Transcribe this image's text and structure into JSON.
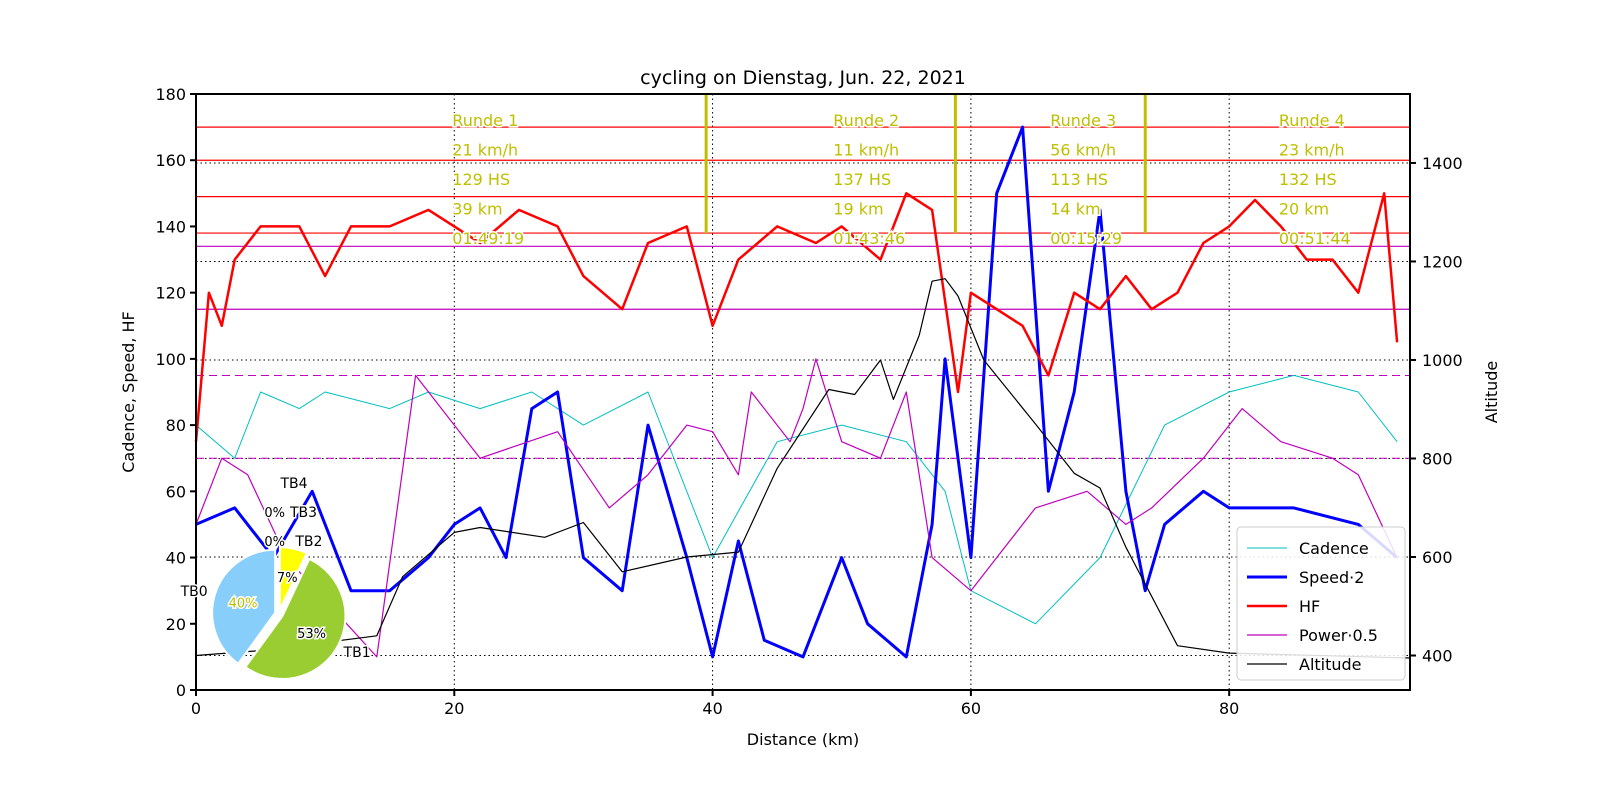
{
  "chart_data": {
    "type": "line",
    "title": "cycling on Dienstag, Jun. 22, 2021",
    "xlabel": "Distance (km)",
    "ylabel": "Cadence, Speed, HF",
    "ylabel_right": "Altitude",
    "xlim": [
      0,
      94
    ],
    "ylim": [
      0,
      180
    ],
    "ylim_right": [
      330,
      1540
    ],
    "xticks": [
      0,
      20,
      40,
      60,
      80
    ],
    "yticks": [
      0,
      20,
      40,
      60,
      80,
      100,
      120,
      140,
      160,
      180
    ],
    "yticks_right": [
      400,
      600,
      800,
      1000,
      1200,
      1400
    ],
    "hlines_red": [
      170,
      160,
      149,
      138
    ],
    "hlines_magenta": [
      134,
      115
    ],
    "hlines_magenta_dashed": [
      95,
      70
    ],
    "lap_lines_km": [
      39.5,
      58.8,
      73.5
    ],
    "laps": [
      {
        "km": 20,
        "lines": [
          "Runde 1",
          "21 km/h",
          "129 HS",
          "39 km",
          "01:49:19"
        ]
      },
      {
        "km": 49.5,
        "lines": [
          "Runde 2",
          "11 km/h",
          "137 HS",
          "19 km",
          "01:43:46"
        ]
      },
      {
        "km": 66.3,
        "lines": [
          "Runde 3",
          "56 km/h",
          "113 HS",
          "14 km",
          "00:15:29"
        ]
      },
      {
        "km": 84,
        "lines": [
          "Runde 4",
          "23 km/h",
          "132 HS",
          "20 km",
          "00:51:44"
        ]
      }
    ],
    "series": [
      {
        "name": "Cadence",
        "color": "#00bfbf",
        "width": 1,
        "axis": "left",
        "x": [
          0,
          3,
          5,
          8,
          10,
          15,
          18,
          22,
          26,
          30,
          35,
          40,
          45,
          50,
          55,
          58,
          60,
          65,
          70,
          75,
          80,
          85,
          90,
          93
        ],
        "y": [
          80,
          70,
          90,
          85,
          90,
          85,
          90,
          85,
          90,
          80,
          90,
          40,
          75,
          80,
          75,
          60,
          30,
          20,
          40,
          80,
          90,
          95,
          90,
          75
        ]
      },
      {
        "name": "Speed·2",
        "color": "#0000ff",
        "width": 3,
        "axis": "left",
        "x": [
          0,
          3,
          6,
          9,
          12,
          15,
          18,
          20,
          22,
          24,
          26,
          28,
          30,
          33,
          35,
          38,
          40,
          42,
          44,
          47,
          50,
          52,
          55,
          57,
          58,
          60,
          62,
          64,
          66,
          68,
          70,
          72,
          73.5,
          75,
          78,
          80,
          85,
          90,
          93
        ],
        "y": [
          50,
          55,
          40,
          60,
          30,
          30,
          40,
          50,
          55,
          40,
          85,
          90,
          40,
          30,
          80,
          40,
          10,
          45,
          15,
          10,
          40,
          20,
          10,
          50,
          100,
          40,
          150,
          170,
          60,
          90,
          145,
          60,
          30,
          50,
          60,
          55,
          55,
          50,
          40
        ]
      },
      {
        "name": "HF",
        "color": "#ff0000",
        "width": 2.5,
        "axis": "left",
        "x": [
          0,
          1,
          2,
          3,
          5,
          8,
          10,
          12,
          15,
          18,
          20,
          22,
          25,
          28,
          30,
          33,
          35,
          38,
          40,
          42,
          45,
          48,
          50,
          53,
          55,
          57,
          59,
          60,
          62,
          64,
          66,
          68,
          70,
          72,
          74,
          76,
          78,
          80,
          82,
          84,
          86,
          88,
          90,
          92,
          93
        ],
        "y": [
          75,
          120,
          110,
          130,
          140,
          140,
          125,
          140,
          140,
          145,
          140,
          135,
          145,
          140,
          125,
          115,
          135,
          140,
          110,
          130,
          140,
          135,
          140,
          130,
          150,
          145,
          90,
          120,
          115,
          110,
          95,
          120,
          115,
          125,
          115,
          120,
          135,
          140,
          148,
          140,
          130,
          130,
          120,
          150,
          105
        ]
      },
      {
        "name": "Power·0.5",
        "color": "#bf00bf",
        "width": 1.2,
        "axis": "left",
        "x": [
          0,
          2,
          4,
          7,
          14,
          17,
          22,
          28,
          32,
          35,
          38,
          40,
          42,
          43,
          46,
          47,
          48,
          50,
          53,
          55,
          57,
          60,
          62,
          65,
          69,
          72,
          74,
          78,
          81,
          84,
          88,
          90,
          93
        ],
        "y": [
          50,
          70,
          65,
          40,
          10,
          95,
          70,
          78,
          55,
          65,
          80,
          78,
          65,
          90,
          75,
          85,
          100,
          75,
          70,
          90,
          40,
          30,
          40,
          55,
          60,
          50,
          55,
          70,
          85,
          75,
          70,
          65,
          40
        ]
      },
      {
        "name": "Altitude",
        "color": "#000000",
        "width": 1.2,
        "axis": "right",
        "x": [
          0,
          5,
          14,
          16,
          20,
          22,
          27,
          30,
          33,
          38,
          42,
          45,
          49,
          51,
          53,
          54,
          56,
          57,
          58,
          59,
          61,
          65,
          68,
          70,
          72,
          76,
          80,
          94
        ],
        "y": [
          400,
          410,
          440,
          560,
          650,
          660,
          640,
          670,
          570,
          600,
          610,
          780,
          940,
          930,
          1000,
          920,
          1050,
          1160,
          1165,
          1130,
          1000,
          870,
          770,
          740,
          620,
          420,
          405,
          395
        ]
      }
    ],
    "legend": {
      "placement": "lower-right",
      "entries": [
        "Cadence",
        "Speed·2",
        "HF",
        "Power·0.5",
        "Altitude"
      ]
    },
    "pie": {
      "labels": [
        "TB0",
        "TB1",
        "TB2",
        "TB3",
        "TB4"
      ],
      "values": [
        40,
        53,
        7,
        0,
        0
      ],
      "pct_labels": [
        "40%",
        "53%",
        "7%",
        "0%",
        "0%"
      ],
      "colors": [
        "#87cefa",
        "#9acd32",
        "#ffff00",
        "#ffa500",
        "#ff0000"
      ]
    }
  }
}
